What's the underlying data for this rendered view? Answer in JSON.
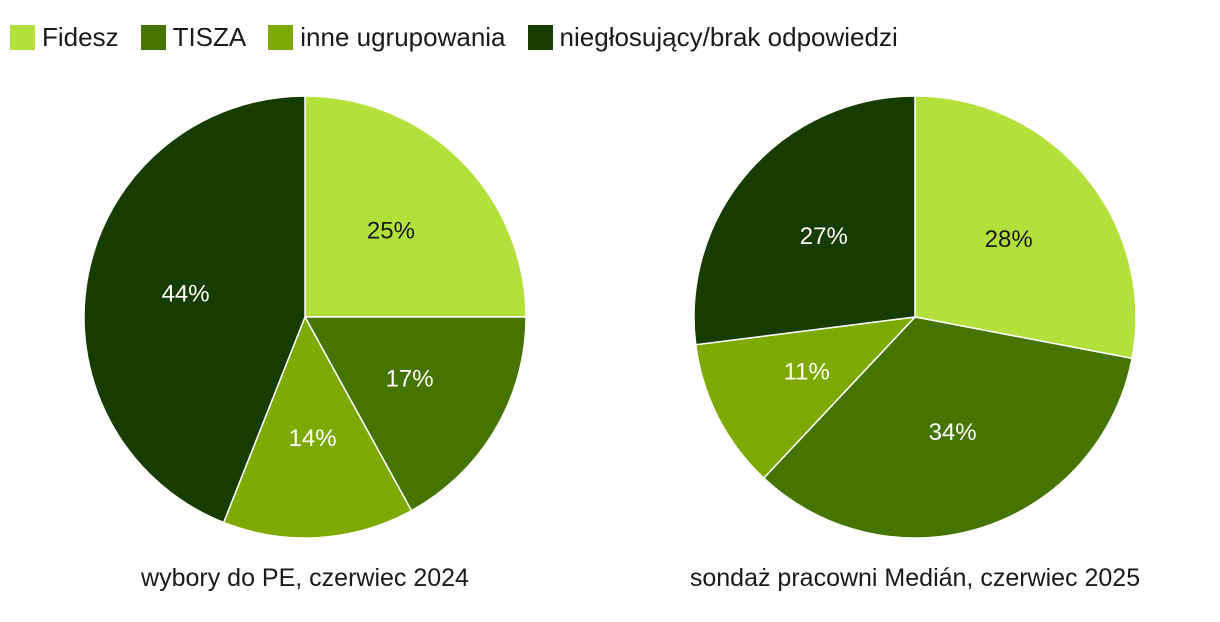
{
  "legend": [
    {
      "label": "Fidesz",
      "color": "#b3e03b"
    },
    {
      "label": "TISZA",
      "color": "#457400"
    },
    {
      "label": "inne ugrupowania",
      "color": "#7ea900"
    },
    {
      "label": "niegłosujący/brak odpowiedzi",
      "color": "#173c00"
    }
  ],
  "chart_data": [
    {
      "type": "pie",
      "title": "wybory do PE, czerwiec 2024",
      "categories": [
        "Fidesz",
        "TISZA",
        "inne ugrupowania",
        "niegłosujący/brak odpowiedzi"
      ],
      "values": [
        25,
        17,
        14,
        44
      ],
      "labels": [
        "25%",
        "17%",
        "14%",
        "44%"
      ],
      "colors": [
        "#b3e03b",
        "#457400",
        "#7ea900",
        "#173c00"
      ],
      "label_colors": [
        "#1a1a1a",
        "#ffffff",
        "#ffffff",
        "#ffffff"
      ]
    },
    {
      "type": "pie",
      "title": "sondaż pracowni Medián, czerwiec 2025",
      "categories": [
        "Fidesz",
        "TISZA",
        "inne ugrupowania",
        "niegłosujący/brak odpowiedzi"
      ],
      "values": [
        28,
        34,
        11,
        27
      ],
      "labels": [
        "28%",
        "34%",
        "11%",
        "27%"
      ],
      "colors": [
        "#b3e03b",
        "#457400",
        "#7ea900",
        "#173c00"
      ],
      "label_colors": [
        "#1a1a1a",
        "#ffffff",
        "#ffffff",
        "#ffffff"
      ]
    }
  ]
}
